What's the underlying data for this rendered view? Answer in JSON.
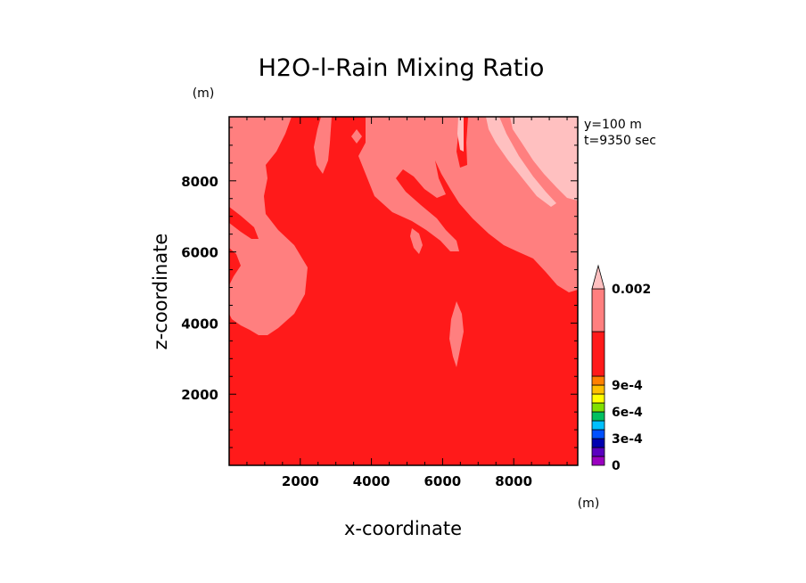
{
  "chart_data": {
    "type": "heatmap",
    "title": "H2O-l-Rain Mixing Ratio",
    "xlabel": "x-coordinate",
    "ylabel": "z-coordinate",
    "x_unit": "(m)",
    "y_unit": "(m)",
    "xlim": [
      0,
      9800
    ],
    "ylim": [
      0,
      9800
    ],
    "x_ticks": [
      "2000",
      "4000",
      "6000",
      "8000"
    ],
    "x_tick_values": [
      2000,
      4000,
      6000,
      8000
    ],
    "y_ticks": [
      "2000",
      "4000",
      "6000",
      "8000"
    ],
    "y_tick_values": [
      2000,
      4000,
      6000,
      8000
    ],
    "annotations": [
      "y=100 m",
      "t=9350 sec"
    ],
    "colorbar": {
      "levels": [
        0,
        0.0001,
        0.0002,
        0.0003,
        0.0004,
        0.0005,
        0.0006,
        0.0007,
        0.0008,
        0.0009,
        0.001,
        0.0015,
        0.002
      ],
      "colors": [
        "#9a00c0",
        "#5a00c0",
        "#0000b0",
        "#0050ff",
        "#00c0ff",
        "#00c060",
        "#80e000",
        "#ffff00",
        "#ffc000",
        "#ff8000",
        "#ff1a1a",
        "#ff7f7f",
        "#ffc0c0"
      ],
      "labels": [
        "0",
        "3e-4",
        "6e-4",
        "9e-4",
        "0.002"
      ],
      "label_values": [
        0,
        0.0003,
        0.0006,
        0.0009,
        0.002
      ]
    },
    "regions": [
      {
        "name": "light-pink-upper-right",
        "range": "> 0.002",
        "color": "#ffc0c0"
      },
      {
        "name": "pink-upper",
        "range": "0.0015 - 0.002",
        "color": "#ff7f7f"
      },
      {
        "name": "red-main",
        "range": "0.001 - 0.0015",
        "color": "#ff1a1a"
      }
    ]
  }
}
